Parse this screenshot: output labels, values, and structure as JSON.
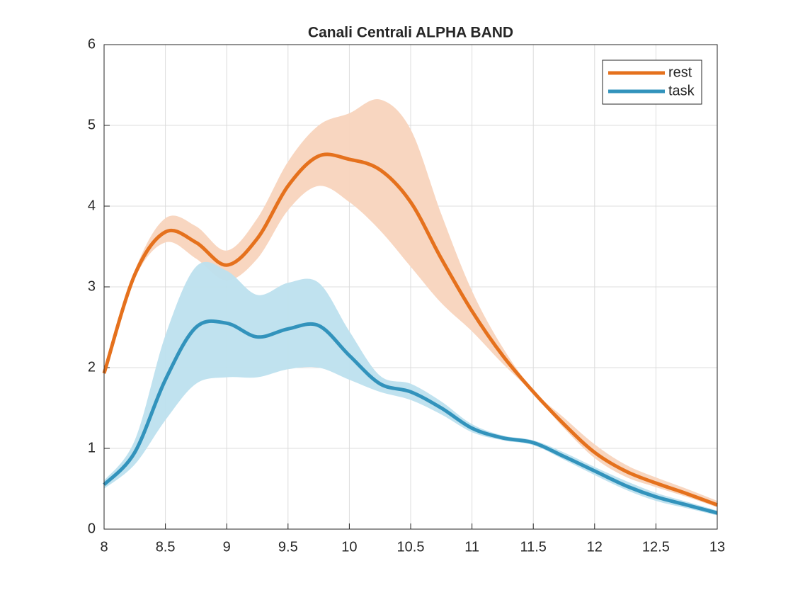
{
  "chart_data": {
    "type": "line",
    "title": "Canali Centrali ALPHA BAND",
    "x": [
      8,
      8.25,
      8.5,
      8.75,
      9,
      9.25,
      9.5,
      9.75,
      10,
      10.25,
      10.5,
      10.75,
      11,
      11.25,
      11.5,
      11.75,
      12,
      12.25,
      12.5,
      12.75,
      13
    ],
    "series": [
      {
        "name": "rest",
        "color": "#e5711d",
        "band_color": "#f8d4bd",
        "values": [
          1.93,
          3.15,
          3.68,
          3.55,
          3.27,
          3.6,
          4.25,
          4.62,
          4.58,
          4.45,
          4.05,
          3.35,
          2.7,
          2.15,
          1.7,
          1.3,
          0.95,
          0.72,
          0.57,
          0.44,
          0.3
        ],
        "upper": [
          1.95,
          3.2,
          3.85,
          3.75,
          3.45,
          3.85,
          4.55,
          5.0,
          5.15,
          5.32,
          4.95,
          3.9,
          2.95,
          2.25,
          1.72,
          1.38,
          1.05,
          0.8,
          0.64,
          0.5,
          0.35
        ],
        "lower": [
          1.9,
          3.1,
          3.55,
          3.35,
          3.08,
          3.35,
          3.95,
          4.25,
          4.05,
          3.7,
          3.25,
          2.8,
          2.45,
          2.05,
          1.68,
          1.25,
          0.88,
          0.65,
          0.52,
          0.4,
          0.27
        ]
      },
      {
        "name": "task",
        "color": "#3293bc",
        "band_color": "#bde0ee",
        "values": [
          0.55,
          0.95,
          1.85,
          2.5,
          2.55,
          2.38,
          2.48,
          2.52,
          2.15,
          1.8,
          1.7,
          1.5,
          1.25,
          1.13,
          1.07,
          0.9,
          0.72,
          0.54,
          0.4,
          0.3,
          0.2
        ],
        "upper": [
          0.6,
          1.1,
          2.4,
          3.25,
          3.2,
          2.9,
          3.05,
          3.05,
          2.45,
          1.9,
          1.8,
          1.58,
          1.3,
          1.16,
          1.1,
          0.95,
          0.77,
          0.6,
          0.45,
          0.34,
          0.23
        ],
        "lower": [
          0.5,
          0.8,
          1.35,
          1.8,
          1.88,
          1.88,
          1.98,
          2.0,
          1.85,
          1.7,
          1.6,
          1.42,
          1.2,
          1.1,
          1.04,
          0.86,
          0.67,
          0.49,
          0.35,
          0.26,
          0.17
        ]
      }
    ],
    "xlim": [
      8,
      13
    ],
    "ylim": [
      0,
      6
    ],
    "xticks": [
      8,
      8.5,
      9,
      9.5,
      10,
      10.5,
      11,
      11.5,
      12,
      12.5,
      13
    ],
    "yticks": [
      0,
      1,
      2,
      3,
      4,
      5,
      6
    ],
    "grid": true,
    "legend": "top-right"
  }
}
